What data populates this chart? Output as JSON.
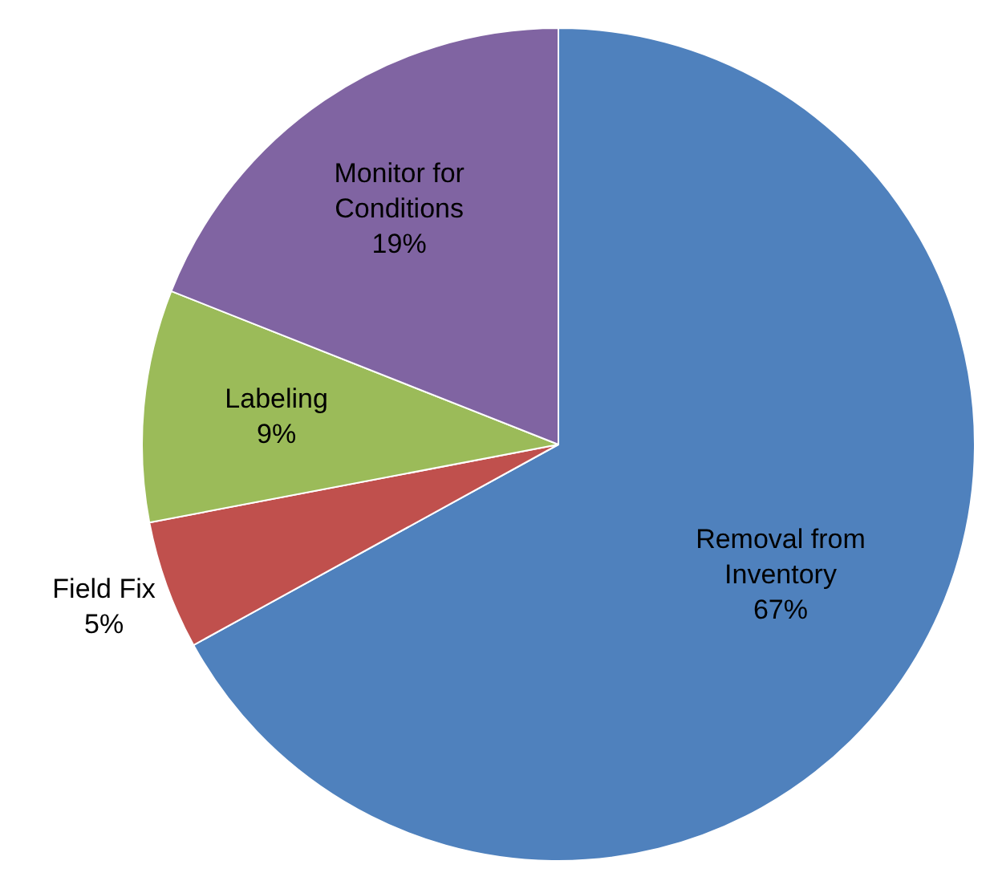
{
  "chart_data": {
    "type": "pie",
    "categories": [
      "Removal from Inventory",
      "Field Fix",
      "Labeling",
      "Monitor for Conditions"
    ],
    "values": [
      67,
      5,
      9,
      19
    ],
    "value_labels": [
      "67%",
      "5%",
      "9%",
      "19%"
    ],
    "colors": [
      "#4f81bd",
      "#c0504d",
      "#9bbb59",
      "#8064a2"
    ],
    "legend": false
  }
}
